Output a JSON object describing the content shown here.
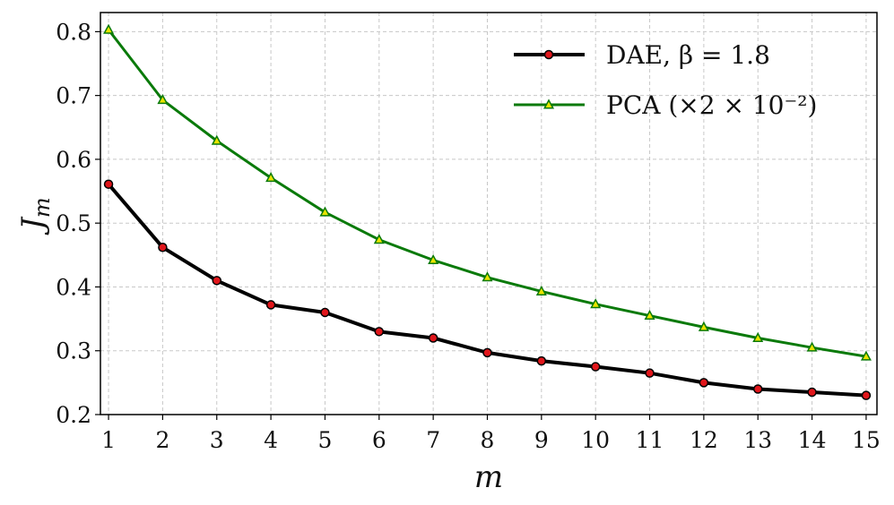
{
  "chart_data": {
    "type": "line",
    "title": "",
    "xlabel": "m",
    "ylabel": "J",
    "ylabel_subscript": "m",
    "xlim": [
      0.85,
      15.2
    ],
    "ylim": [
      0.2,
      0.83
    ],
    "x": [
      1,
      2,
      3,
      4,
      5,
      6,
      7,
      8,
      9,
      10,
      11,
      12,
      13,
      14,
      15
    ],
    "xticks": [
      "1",
      "2",
      "3",
      "4",
      "5",
      "6",
      "7",
      "8",
      "9",
      "10",
      "11",
      "12",
      "13",
      "14",
      "15"
    ],
    "yticks": [
      "0.2",
      "0.3",
      "0.4",
      "0.5",
      "0.6",
      "0.7",
      "0.8"
    ],
    "grid": true,
    "legend_position": "top-right",
    "series": [
      {
        "name": "DAE, β = 1.8",
        "color": "#000000",
        "marker_color": "#e0161b",
        "marker": "circle",
        "values": [
          0.561,
          0.462,
          0.41,
          0.372,
          0.36,
          0.33,
          0.32,
          0.297,
          0.284,
          0.275,
          0.265,
          0.25,
          0.24,
          0.235,
          0.23
        ]
      },
      {
        "name": "PCA (×2 × 10⁻²)",
        "color": "#0a7a0a",
        "marker_color": "#e8e400",
        "marker": "triangle",
        "values": [
          0.803,
          0.693,
          0.629,
          0.571,
          0.517,
          0.474,
          0.442,
          0.415,
          0.393,
          0.373,
          0.355,
          0.337,
          0.32,
          0.305,
          0.291
        ]
      }
    ]
  }
}
